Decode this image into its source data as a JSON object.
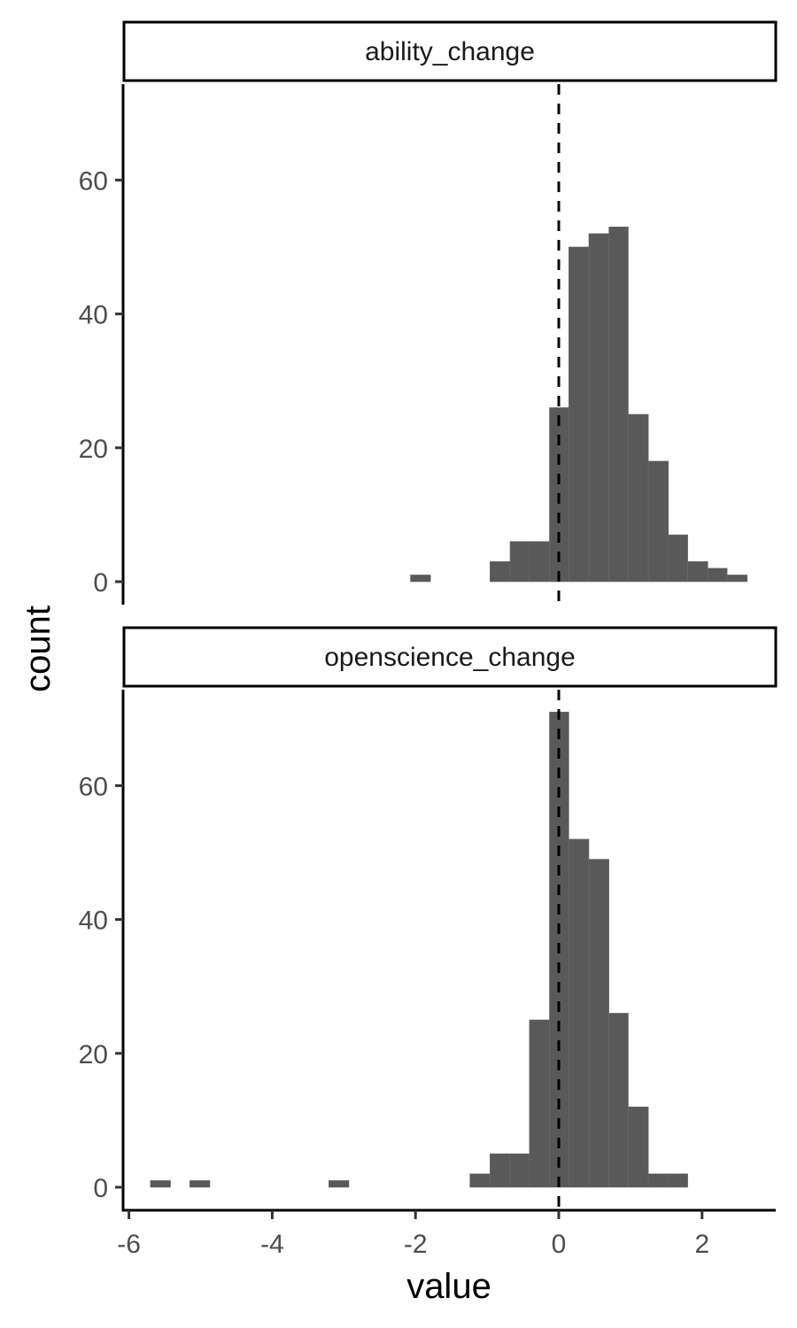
{
  "chart_data": {
    "type": "bar",
    "subtype": "faceted-histogram",
    "xlabel": "value",
    "ylabel": "count",
    "xlim": [
      -6.1,
      3.05
    ],
    "ylim": [
      -3.5,
      74.5
    ],
    "x_ticks": [
      -6,
      -4,
      -2,
      0,
      2
    ],
    "x_tick_labels": [
      "-6",
      "-4",
      "-2",
      "0",
      "2"
    ],
    "y_ticks": [
      0,
      20,
      40,
      60
    ],
    "y_tick_labels": [
      "0",
      "20",
      "40",
      "60"
    ],
    "bin_width": 0.277,
    "reference_line": {
      "x": 0,
      "style": "dashed"
    },
    "grid": false,
    "legend": "none",
    "bar_color": "#595959",
    "panels": [
      {
        "label": "ability_change",
        "bins": [
          {
            "x0": -2.07,
            "x1": -1.79,
            "count": 1
          },
          {
            "x0": -0.96,
            "x1": -0.68,
            "count": 3
          },
          {
            "x0": -0.68,
            "x1": -0.41,
            "count": 6
          },
          {
            "x0": -0.41,
            "x1": -0.13,
            "count": 6
          },
          {
            "x0": -0.13,
            "x1": 0.14,
            "count": 26
          },
          {
            "x0": 0.14,
            "x1": 0.42,
            "count": 50
          },
          {
            "x0": 0.42,
            "x1": 0.7,
            "count": 52
          },
          {
            "x0": 0.7,
            "x1": 0.97,
            "count": 53
          },
          {
            "x0": 0.97,
            "x1": 1.25,
            "count": 25
          },
          {
            "x0": 1.25,
            "x1": 1.53,
            "count": 18
          },
          {
            "x0": 1.53,
            "x1": 1.8,
            "count": 7
          },
          {
            "x0": 1.8,
            "x1": 2.08,
            "count": 3
          },
          {
            "x0": 2.08,
            "x1": 2.35,
            "count": 2
          },
          {
            "x0": 2.35,
            "x1": 2.63,
            "count": 1
          }
        ]
      },
      {
        "label": "openscience_change",
        "bins": [
          {
            "x0": -5.7,
            "x1": -5.42,
            "count": 1
          },
          {
            "x0": -5.15,
            "x1": -4.87,
            "count": 1
          },
          {
            "x0": -3.21,
            "x1": -2.93,
            "count": 1
          },
          {
            "x0": -1.24,
            "x1": -0.96,
            "count": 2
          },
          {
            "x0": -0.96,
            "x1": -0.68,
            "count": 5
          },
          {
            "x0": -0.68,
            "x1": -0.41,
            "count": 5
          },
          {
            "x0": -0.41,
            "x1": -0.13,
            "count": 25
          },
          {
            "x0": -0.13,
            "x1": 0.14,
            "count": 71
          },
          {
            "x0": 0.14,
            "x1": 0.42,
            "count": 52
          },
          {
            "x0": 0.42,
            "x1": 0.7,
            "count": 49
          },
          {
            "x0": 0.7,
            "x1": 0.97,
            "count": 26
          },
          {
            "x0": 0.97,
            "x1": 1.25,
            "count": 12
          },
          {
            "x0": 1.25,
            "x1": 1.53,
            "count": 2
          },
          {
            "x0": 1.53,
            "x1": 1.8,
            "count": 2
          }
        ]
      }
    ]
  }
}
